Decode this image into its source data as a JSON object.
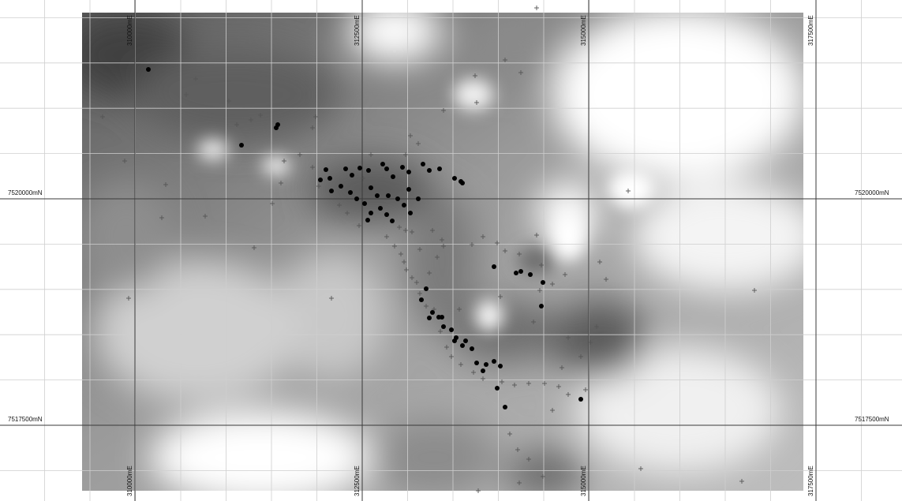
{
  "map": {
    "easting_labels": [
      "310000mE",
      "312500mE",
      "315000mE",
      "317500mE"
    ],
    "northing_labels": [
      "7520000mN",
      "7517500mN"
    ],
    "colors": {
      "background": "#ffffff",
      "grid_minor": "#cfcfcf",
      "grid_major": "#3a3a3a",
      "dark": "#4a4a4a",
      "light": "#ffffff",
      "samples": "#000000",
      "crosses": "#555555"
    }
  }
}
